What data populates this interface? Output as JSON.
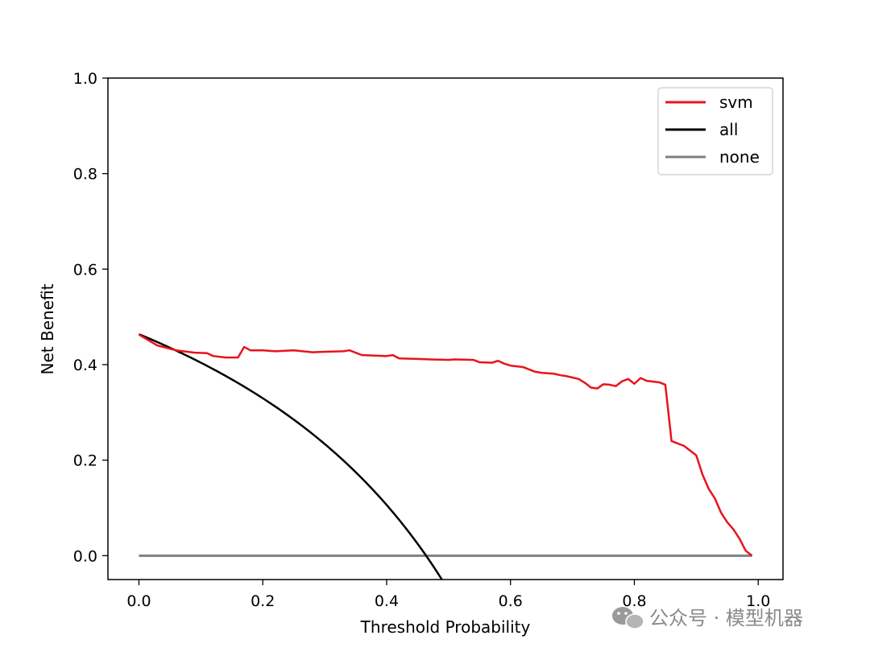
{
  "chart_data": {
    "type": "line",
    "title": "",
    "xlabel": "Threshold Probability",
    "ylabel": "Net Benefit",
    "xlim": [
      -0.05,
      1.04
    ],
    "ylim": [
      -0.05,
      1.0
    ],
    "xticks": [
      "0.0",
      "0.2",
      "0.4",
      "0.6",
      "0.8",
      "1.0"
    ],
    "yticks": [
      "0.0",
      "0.2",
      "0.4",
      "0.6",
      "0.8",
      "1.0"
    ],
    "grid": false,
    "legend_position": "top-right",
    "series": [
      {
        "name": "svm",
        "color": "#e8141b",
        "x": [
          0.0,
          0.03,
          0.06,
          0.09,
          0.11,
          0.12,
          0.14,
          0.16,
          0.17,
          0.18,
          0.2,
          0.22,
          0.25,
          0.28,
          0.3,
          0.33,
          0.34,
          0.36,
          0.4,
          0.41,
          0.42,
          0.45,
          0.47,
          0.5,
          0.51,
          0.54,
          0.55,
          0.57,
          0.58,
          0.59,
          0.6,
          0.62,
          0.63,
          0.64,
          0.65,
          0.67,
          0.68,
          0.69,
          0.7,
          0.71,
          0.72,
          0.73,
          0.74,
          0.75,
          0.76,
          0.77,
          0.78,
          0.79,
          0.8,
          0.81,
          0.82,
          0.84,
          0.85,
          0.86,
          0.87,
          0.88,
          0.89,
          0.9,
          0.91,
          0.92,
          0.93,
          0.94,
          0.95,
          0.96,
          0.97,
          0.98,
          0.99
        ],
        "y": [
          0.463,
          0.44,
          0.43,
          0.425,
          0.424,
          0.418,
          0.415,
          0.415,
          0.437,
          0.43,
          0.43,
          0.428,
          0.43,
          0.426,
          0.427,
          0.428,
          0.43,
          0.42,
          0.418,
          0.42,
          0.413,
          0.412,
          0.411,
          0.41,
          0.411,
          0.41,
          0.405,
          0.404,
          0.408,
          0.402,
          0.398,
          0.395,
          0.39,
          0.385,
          0.383,
          0.381,
          0.378,
          0.376,
          0.373,
          0.37,
          0.362,
          0.352,
          0.35,
          0.359,
          0.358,
          0.355,
          0.365,
          0.37,
          0.36,
          0.372,
          0.366,
          0.363,
          0.358,
          0.24,
          0.235,
          0.23,
          0.22,
          0.21,
          0.17,
          0.14,
          0.12,
          0.09,
          0.07,
          0.055,
          0.035,
          0.01,
          0.0
        ]
      },
      {
        "name": "all",
        "color": "#000000",
        "prevalence": 0.4637,
        "x_range": [
          0.0,
          0.5
        ]
      },
      {
        "name": "none",
        "color": "#808080",
        "x": [
          0.0,
          0.99
        ],
        "y": [
          0.0,
          0.0
        ]
      }
    ]
  },
  "watermark": {
    "text": "公众号 · 模型机器"
  }
}
